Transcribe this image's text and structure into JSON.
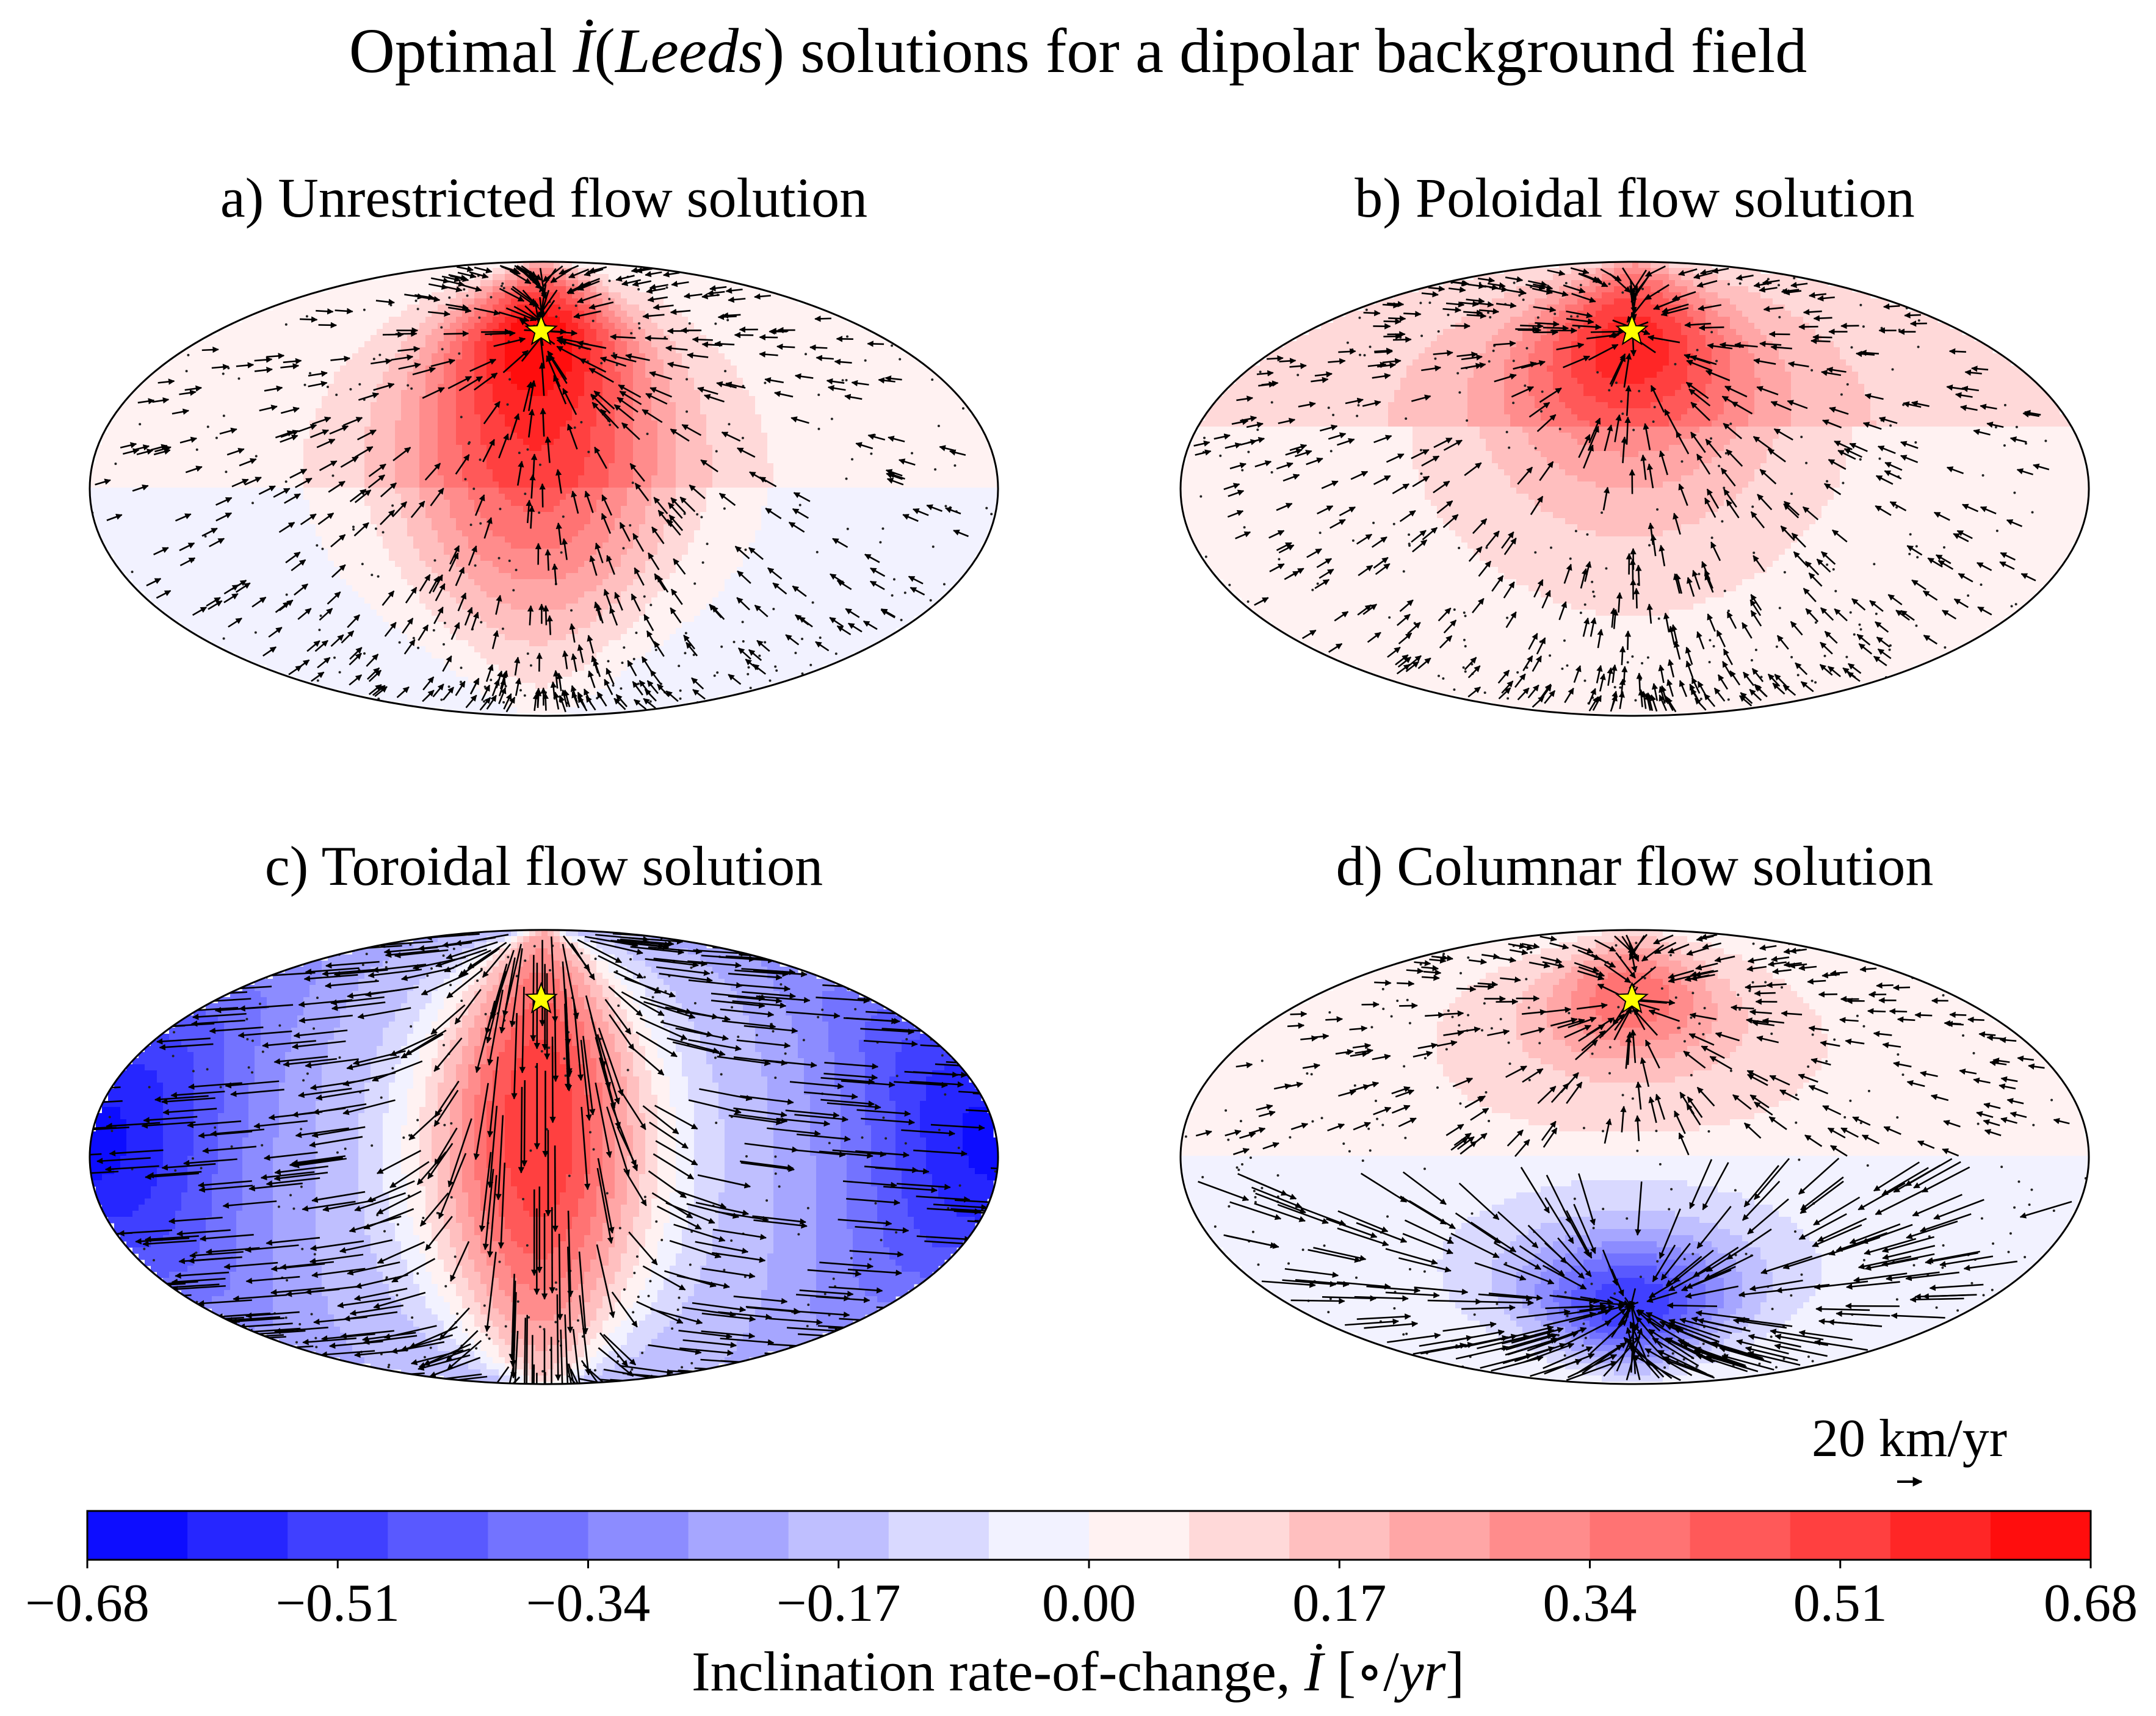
{
  "chart_data": {
    "type": "contour-map",
    "projection": "Mollweide",
    "title": {
      "prefix": "Optimal ",
      "symbol": "İ",
      "open": "(",
      "site": "Leeds",
      "close": ")",
      "suffix": " solutions for a dipolar background field"
    },
    "marker": {
      "name": "Leeds",
      "symbol": "star",
      "lon": -1.5,
      "lat": 53.8,
      "color": "#ffff00"
    },
    "panels": [
      {
        "id": "a",
        "title": "a) Unrestricted flow solution",
        "blobs": [
          {
            "lon": -3,
            "lat": 56,
            "dlon": 34,
            "dlat": 20,
            "amp": 0.38
          },
          {
            "lon": -3,
            "lat": 8,
            "dlon": 40,
            "dlat": 38,
            "amp": 0.42
          }
        ],
        "background": [
          {
            "lat_min": 0,
            "lat_max": 90,
            "value": 0.04
          },
          {
            "lat_min": -90,
            "lat_max": 0,
            "value": -0.03
          }
        ],
        "core_band": {
          "lon": -3,
          "half_width": 60,
          "value": 0.05
        }
      },
      {
        "id": "b",
        "title": "b) Poloidal flow solution",
        "blobs": [
          {
            "lon": -2,
            "lat": 52,
            "dlon": 38,
            "dlat": 24,
            "amp": 0.4
          },
          {
            "lon": -2,
            "lat": 15,
            "dlon": 45,
            "dlat": 32,
            "amp": 0.14
          }
        ],
        "background": [
          {
            "lat_min": 20,
            "lat_max": 90,
            "value": 0.12
          },
          {
            "lat_min": -90,
            "lat_max": 20,
            "value": 0.04
          }
        ],
        "core_band": null
      },
      {
        "id": "c",
        "title": "c) Toroidal flow solution",
        "blobs": [
          {
            "lon": -2,
            "lat": 10,
            "dlon": 30,
            "dlat": 60,
            "amp": 0.58
          },
          {
            "lon": -160,
            "lat": 5,
            "dlon": 40,
            "dlat": 40,
            "amp": -0.28
          },
          {
            "lon": 160,
            "lat": 5,
            "dlon": 40,
            "dlat": 40,
            "amp": -0.28
          }
        ],
        "background": [
          {
            "lat_min": -90,
            "lat_max": 90,
            "value": -0.14
          }
        ],
        "core_band": {
          "lon": -2,
          "half_width": 70,
          "value": 0.1
        }
      },
      {
        "id": "d",
        "title": "d) Columnar flow solution",
        "blobs": [
          {
            "lon": -2,
            "lat": 55,
            "dlon": 35,
            "dlat": 18,
            "amp": 0.34
          },
          {
            "lon": -2,
            "lat": -50,
            "dlon": 38,
            "dlat": 18,
            "amp": -0.5
          }
        ],
        "background": [
          {
            "lat_min": 0,
            "lat_max": 90,
            "value": 0.06
          },
          {
            "lat_min": -90,
            "lat_max": 0,
            "value": -0.04
          }
        ],
        "core_band": null
      }
    ],
    "colorbar": {
      "cmap": "bwr",
      "min": -0.68,
      "max": 0.68,
      "levels": 21,
      "tick_labels": [
        "−0.68",
        "−0.51",
        "−0.34",
        "−0.17",
        "0.00",
        "0.17",
        "0.34",
        "0.51",
        "0.68"
      ],
      "label_text": "Inclination rate-of-change, ",
      "label_symbol": "İ",
      "label_units_open": "[",
      "label_units_deg": "∘",
      "label_units_slash": "/",
      "label_units_yr": "yr",
      "label_units_close": "]"
    },
    "quiver_key": {
      "label": "20 km/yr",
      "value_km_per_yr": 20
    }
  }
}
